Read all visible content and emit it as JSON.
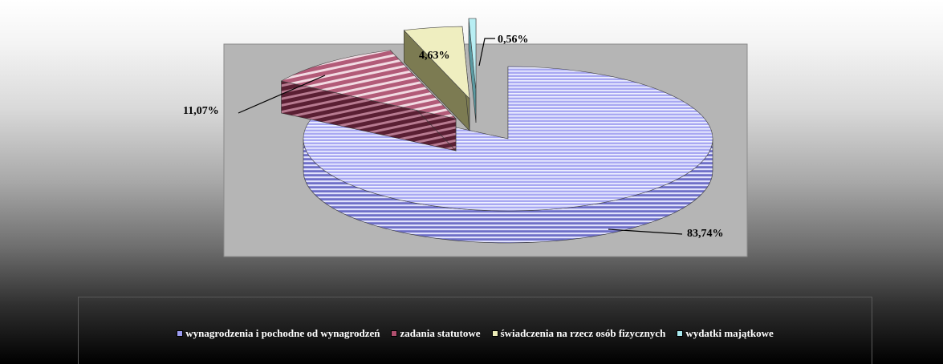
{
  "chart_data": {
    "type": "pie",
    "categories": [
      "wynagrodzenia i pochodne od wynagrodzeń",
      "zadania statutowe",
      "świadczenia na rzecz osób fizycznych",
      "wydatki majątkowe"
    ],
    "values": [
      83.74,
      11.07,
      4.63,
      0.56
    ],
    "data_labels": [
      "83,74%",
      "11,07%",
      "4,63%",
      "0,56%"
    ],
    "colors": [
      "#9c9cf0",
      "#b04f6e",
      "#ecebb7",
      "#a9e9ef"
    ],
    "legend_position": "bottom",
    "style": "3d-exploded"
  }
}
